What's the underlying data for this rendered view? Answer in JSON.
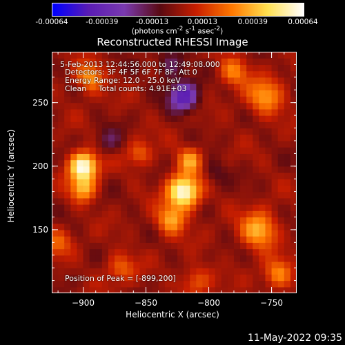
{
  "colorbar": {
    "tick_labels": [
      "-0.00064",
      "-0.00039",
      "-0.00013",
      "0.00013",
      "0.00039",
      "0.00064"
    ],
    "unit_html": "(photons cm<sup>-2</sup> s<sup>-1</sup> asec<sup>-2</sup>)",
    "unit_text": "(photons cm-2 s-1 asec-2)",
    "range": [
      -0.00064,
      0.00064
    ]
  },
  "chart_data": {
    "type": "heatmap",
    "title": "Reconstructed RHESSI Image",
    "xlabel": "Heliocentric X (arcsec)",
    "ylabel": "Heliocentric Y (arcsec)",
    "xlim": [
      -925,
      -730
    ],
    "ylim": [
      100,
      290
    ],
    "xticks": [
      -900,
      -850,
      -800,
      -750
    ],
    "xtick_labels": [
      "−900",
      "−850",
      "−800",
      "−750"
    ],
    "yticks": [
      150,
      200,
      250
    ],
    "ytick_labels": [
      "150",
      "200",
      "250"
    ],
    "colormap": [
      "#0000ff",
      "#5a1cb4",
      "#7a3ab0",
      "#5a0a12",
      "#c81e00",
      "#ff7800",
      "#ffe050",
      "#ffffff"
    ],
    "peak_position": [
      -899,
      200
    ],
    "sources": [
      {
        "x": -900,
        "y": 200,
        "amplitude": 0.00064,
        "width": 8
      },
      {
        "x": -900,
        "y": 182,
        "amplitude": 0.00035,
        "width": 7
      },
      {
        "x": -895,
        "y": 270,
        "amplitude": 0.00035,
        "width": 8
      },
      {
        "x": -820,
        "y": 180,
        "amplitude": 0.00064,
        "width": 9
      },
      {
        "x": -830,
        "y": 158,
        "amplitude": 0.00035,
        "width": 8
      },
      {
        "x": -815,
        "y": 205,
        "amplitude": 0.00033,
        "width": 7
      },
      {
        "x": -755,
        "y": 255,
        "amplitude": 0.00033,
        "width": 10
      },
      {
        "x": -760,
        "y": 150,
        "amplitude": 0.00039,
        "width": 10
      },
      {
        "x": -745,
        "y": 115,
        "amplitude": 0.0003,
        "width": 8
      },
      {
        "x": -780,
        "y": 275,
        "amplitude": 0.00028,
        "width": 8
      },
      {
        "x": -855,
        "y": 210,
        "amplitude": 0.00022,
        "width": 7
      },
      {
        "x": -870,
        "y": 120,
        "amplitude": 0.00022,
        "width": 8
      },
      {
        "x": -810,
        "y": 110,
        "amplitude": 0.00022,
        "width": 8
      },
      {
        "x": -920,
        "y": 140,
        "amplitude": 0.0002,
        "width": 8
      },
      {
        "x": -820,
        "y": 255,
        "amplitude": -0.00045,
        "width": 8
      },
      {
        "x": -830,
        "y": 280,
        "amplitude": -0.0002,
        "width": 8
      },
      {
        "x": -880,
        "y": 220,
        "amplitude": -0.00015,
        "width": 7
      },
      {
        "x": -795,
        "y": 195,
        "amplitude": -0.00012,
        "width": 7
      }
    ]
  },
  "annotations": {
    "time_range": "5-Feb-2013 12:44:56.000 to 12:49:08.000",
    "detectors": "Detectors: 3F 4F 5F 6F 7F 8F, Att 0",
    "energy_range": "Energy Range: 12.0 - 25.0 keV",
    "algorithm_counts": "Clean     Total counts: 4.91E+03",
    "peak": "Position of Peak = [-899,200]"
  },
  "timestamp": "11-May-2022 09:35"
}
